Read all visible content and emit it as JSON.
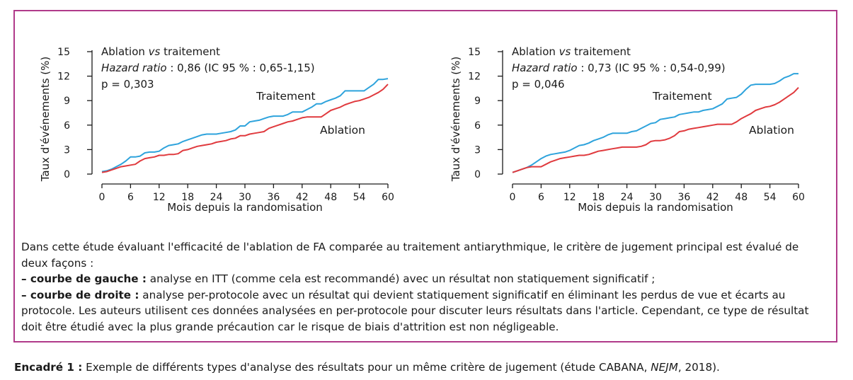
{
  "colors": {
    "frame": "#b03a8a",
    "traitement": "#2ea3dc",
    "ablation": "#e03a3e"
  },
  "chart_data": [
    {
      "type": "line",
      "ylabel": "Taux d'événements (%)",
      "xlabel": "Mois depuis la randomisation",
      "x_ticks": [
        "0",
        "6",
        "12",
        "18",
        "24",
        "30",
        "36",
        "42",
        "48",
        "54",
        "60"
      ],
      "y_ticks": [
        "0",
        "3",
        "6",
        "9",
        "12",
        "15"
      ],
      "xlim": [
        0,
        60
      ],
      "ylim": [
        0,
        15
      ],
      "annotation": {
        "line1_prefix": "Ablation ",
        "line1_italic": "vs",
        "line1_suffix": " traitement",
        "line2_italic": "Hazard ratio",
        "line2_rest": " : 0,86 (IC 95 % : 0,65-1,15)",
        "line3": "p = 0,303"
      },
      "series": [
        {
          "name": "Traitement",
          "color": "#2ea3dc",
          "x": [
            0,
            1,
            2,
            3,
            4,
            5,
            6,
            7,
            8,
            9,
            10,
            11,
            12,
            13,
            14,
            15,
            16,
            17,
            18,
            19,
            20,
            21,
            22,
            23,
            24,
            25,
            26,
            27,
            28,
            29,
            30,
            31,
            32,
            33,
            34,
            35,
            36,
            37,
            38,
            39,
            40,
            41,
            42,
            43,
            44,
            45,
            46,
            47,
            48,
            49,
            50,
            51,
            52,
            53,
            54,
            55,
            56,
            57,
            58,
            59,
            60
          ],
          "y": [
            0.3,
            0.4,
            0.6,
            0.9,
            1.2,
            1.6,
            2.1,
            2.1,
            2.2,
            2.6,
            2.7,
            2.7,
            2.8,
            3.2,
            3.5,
            3.6,
            3.7,
            4.0,
            4.2,
            4.4,
            4.6,
            4.8,
            4.9,
            4.9,
            4.9,
            5.0,
            5.1,
            5.2,
            5.4,
            5.9,
            5.9,
            6.4,
            6.5,
            6.6,
            6.8,
            7.0,
            7.1,
            7.1,
            7.1,
            7.3,
            7.6,
            7.6,
            7.6,
            7.9,
            8.2,
            8.6,
            8.6,
            8.9,
            9.1,
            9.3,
            9.6,
            10.2,
            10.2,
            10.2,
            10.2,
            10.2,
            10.6,
            11.0,
            11.6,
            11.6,
            11.7
          ]
        },
        {
          "name": "Ablation",
          "color": "#e03a3e",
          "x": [
            0,
            1,
            2,
            3,
            4,
            5,
            6,
            7,
            8,
            9,
            10,
            11,
            12,
            13,
            14,
            15,
            16,
            17,
            18,
            19,
            20,
            21,
            22,
            23,
            24,
            25,
            26,
            27,
            28,
            29,
            30,
            31,
            32,
            33,
            34,
            35,
            36,
            37,
            38,
            39,
            40,
            41,
            42,
            43,
            44,
            45,
            46,
            47,
            48,
            49,
            50,
            51,
            52,
            53,
            54,
            55,
            56,
            57,
            58,
            59,
            60
          ],
          "y": [
            0.2,
            0.3,
            0.5,
            0.7,
            0.9,
            1.0,
            1.1,
            1.2,
            1.6,
            1.9,
            2.0,
            2.1,
            2.3,
            2.3,
            2.4,
            2.4,
            2.5,
            2.9,
            3.0,
            3.2,
            3.4,
            3.5,
            3.6,
            3.7,
            3.9,
            4.0,
            4.1,
            4.3,
            4.4,
            4.7,
            4.7,
            4.9,
            5.0,
            5.1,
            5.2,
            5.6,
            5.8,
            6.0,
            6.2,
            6.4,
            6.5,
            6.7,
            6.9,
            7.0,
            7.0,
            7.0,
            7.0,
            7.4,
            7.8,
            8.0,
            8.2,
            8.5,
            8.7,
            8.9,
            9.0,
            9.2,
            9.4,
            9.7,
            10.0,
            10.4,
            11.0
          ]
        }
      ],
      "series_labels": {
        "traitement": "Traitement",
        "ablation": "Ablation"
      }
    },
    {
      "type": "line",
      "ylabel": "Taux d'événements (%)",
      "xlabel": "Mois depuis la randomisation",
      "x_ticks": [
        "0",
        "6",
        "12",
        "18",
        "24",
        "30",
        "36",
        "42",
        "48",
        "54",
        "60"
      ],
      "y_ticks": [
        "0",
        "3",
        "6",
        "9",
        "12",
        "15"
      ],
      "xlim": [
        0,
        60
      ],
      "ylim": [
        0,
        15
      ],
      "annotation": {
        "line1_prefix": "Ablation ",
        "line1_italic": "vs",
        "line1_suffix": " traitement",
        "line2_italic": "Hazard ratio",
        "line2_rest": " : 0,73 (IC 95 % : 0,54-0,99)",
        "line3": "p = 0,046"
      },
      "series": [
        {
          "name": "Traitement",
          "color": "#2ea3dc",
          "x": [
            0,
            1,
            2,
            3,
            4,
            5,
            6,
            7,
            8,
            9,
            10,
            11,
            12,
            13,
            14,
            15,
            16,
            17,
            18,
            19,
            20,
            21,
            22,
            23,
            24,
            25,
            26,
            27,
            28,
            29,
            30,
            31,
            32,
            33,
            34,
            35,
            36,
            37,
            38,
            39,
            40,
            41,
            42,
            43,
            44,
            45,
            46,
            47,
            48,
            49,
            50,
            51,
            52,
            53,
            54,
            55,
            56,
            57,
            58,
            59,
            60
          ],
          "y": [
            0.2,
            0.4,
            0.6,
            0.8,
            1.1,
            1.5,
            1.9,
            2.2,
            2.4,
            2.5,
            2.6,
            2.7,
            2.9,
            3.2,
            3.5,
            3.6,
            3.8,
            4.1,
            4.3,
            4.5,
            4.8,
            5.0,
            5.0,
            5.0,
            5.0,
            5.2,
            5.3,
            5.6,
            5.9,
            6.2,
            6.3,
            6.7,
            6.8,
            6.9,
            7.0,
            7.3,
            7.4,
            7.5,
            7.6,
            7.6,
            7.8,
            7.9,
            8.0,
            8.3,
            8.6,
            9.2,
            9.3,
            9.4,
            9.8,
            10.4,
            10.9,
            11.0,
            11.0,
            11.0,
            11.0,
            11.1,
            11.4,
            11.8,
            12.0,
            12.3,
            12.3
          ]
        },
        {
          "name": "Ablation",
          "color": "#e03a3e",
          "x": [
            0,
            1,
            2,
            3,
            4,
            5,
            6,
            7,
            8,
            9,
            10,
            11,
            12,
            13,
            14,
            15,
            16,
            17,
            18,
            19,
            20,
            21,
            22,
            23,
            24,
            25,
            26,
            27,
            28,
            29,
            30,
            31,
            32,
            33,
            34,
            35,
            36,
            37,
            38,
            39,
            40,
            41,
            42,
            43,
            44,
            45,
            46,
            47,
            48,
            49,
            50,
            51,
            52,
            53,
            54,
            55,
            56,
            57,
            58,
            59,
            60
          ],
          "y": [
            0.2,
            0.4,
            0.6,
            0.8,
            0.9,
            0.9,
            0.9,
            1.2,
            1.5,
            1.7,
            1.9,
            2.0,
            2.1,
            2.2,
            2.3,
            2.3,
            2.4,
            2.6,
            2.8,
            2.9,
            3.0,
            3.1,
            3.2,
            3.3,
            3.3,
            3.3,
            3.3,
            3.4,
            3.6,
            4.0,
            4.1,
            4.1,
            4.2,
            4.4,
            4.7,
            5.2,
            5.3,
            5.5,
            5.6,
            5.7,
            5.8,
            5.9,
            6.0,
            6.1,
            6.1,
            6.1,
            6.1,
            6.4,
            6.8,
            7.1,
            7.4,
            7.8,
            8.0,
            8.2,
            8.3,
            8.5,
            8.8,
            9.2,
            9.6,
            10.0,
            10.6
          ]
        }
      ],
      "series_labels": {
        "traitement": "Traitement",
        "ablation": "Ablation"
      }
    }
  ],
  "caption": {
    "intro": "Dans cette étude évaluant l'efficacité de l'ablation de FA comparée au traitement antiarythmique, le critère de jugement principal est évalué de deux façons :",
    "left_bold": "– courbe de gauche :",
    "left_text": " analyse en ITT (comme cela est recommandé) avec un résultat non statiquement significatif ;",
    "right_bold": "– courbe de droite :",
    "right_text": " analyse per-protocole avec un résultat qui devient statiquement significatif en éliminant les perdus de vue et écarts au protocole. Les auteurs utilisent ces données analysées en per-protocole pour discuter leurs résultats dans l'article. Cependant, ce type de résultat doit être étudié avec la plus grande précaution car le risque de biais d'attrition est non négligeable."
  },
  "footer": {
    "bold": "Encadré 1 :",
    "text_before": " Exemple de différents types d'analyse des résultats pour un même critère de jugement (étude CABANA, ",
    "italic": "NEJM",
    "text_after": ", 2018)."
  }
}
